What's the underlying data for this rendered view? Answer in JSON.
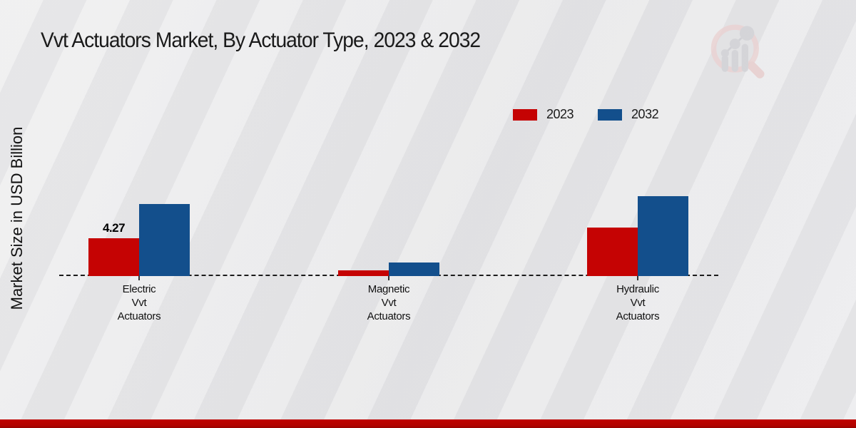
{
  "page": {
    "watermark_icon": "magnifier-bar-chart-logo",
    "background_color": "#e9e9eb",
    "footer_accent_color": "#b20300"
  },
  "chart_data": {
    "type": "bar",
    "title": "Vvt Actuators Market, By Actuator Type, 2023 & 2032",
    "ylabel": "Market Size in USD Billion",
    "xlabel": "",
    "categories": [
      {
        "lines": [
          "Electric",
          "Vvt",
          "Actuators"
        ]
      },
      {
        "lines": [
          "Magnetic",
          "Vvt",
          "Actuators"
        ]
      },
      {
        "lines": [
          "Hydraulic",
          "Vvt",
          "Actuators"
        ]
      }
    ],
    "series": [
      {
        "name": "2023",
        "color": "#c50303",
        "values": [
          4.27,
          0.65,
          5.5
        ],
        "data_labels": [
          "4.27",
          "",
          ""
        ]
      },
      {
        "name": "2032",
        "color": "#134f8c",
        "values": [
          8.15,
          1.55,
          9.0
        ],
        "data_labels": [
          "",
          "",
          ""
        ]
      }
    ],
    "ylim": [
      0,
      20
    ],
    "grid": false,
    "y_axis_ticks_visible": false,
    "baseline_style": "dashed",
    "legend_position": "top-right"
  }
}
